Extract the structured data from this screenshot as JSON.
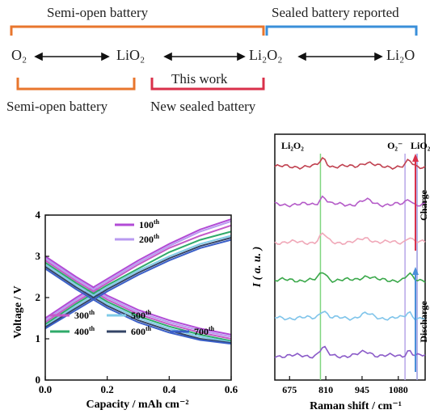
{
  "scheme": {
    "labels": {
      "semi_open_top": "Semi-open battery",
      "sealed_reported": "Sealed battery reported",
      "this_work": "This work",
      "semi_open_bottom": "Semi-open battery",
      "new_sealed": "New sealed battery"
    },
    "species": [
      "O₂",
      "LiO₂",
      "Li₂O₂",
      "Li₂O"
    ],
    "colors": {
      "orange": "#e8762d",
      "blue": "#3a8fd9",
      "red": "#d9304a"
    }
  },
  "chart_data": [
    {
      "type": "line",
      "title": "",
      "xlabel": "Capacity / mAh cm⁻²",
      "ylabel": "Voltage / V",
      "xlim": [
        0.0,
        0.6
      ],
      "ylim": [
        0,
        4
      ],
      "xticks": [
        0.0,
        0.2,
        0.4,
        0.6
      ],
      "xtick_labels": [
        "0.0",
        "0.2",
        "0.4",
        "0.6"
      ],
      "yticks": [
        0,
        1,
        2,
        3,
        4
      ],
      "ytick_labels": [
        "0",
        "1",
        "2",
        "3",
        "4"
      ],
      "legend": [
        {
          "name": "100",
          "sup": "th",
          "color": "#b24bd6"
        },
        {
          "name": "200",
          "sup": "th",
          "color": "#b89af0"
        },
        {
          "name": "300",
          "sup": "th",
          "color": "#c45ac8"
        },
        {
          "name": "400",
          "sup": "th",
          "color": "#2faa6a"
        },
        {
          "name": "500",
          "sup": "th",
          "color": "#7fcbe8"
        },
        {
          "name": "600",
          "sup": "th",
          "color": "#334466"
        },
        {
          "name": "700",
          "sup": "th",
          "color": "#3a5fc8"
        }
      ],
      "series": [
        {
          "name": "100",
          "color": "#b24bd6",
          "discharge": [
            [
              0.0,
              3.0
            ],
            [
              0.1,
              2.5
            ],
            [
              0.2,
              2.05
            ],
            [
              0.3,
              1.7
            ],
            [
              0.4,
              1.45
            ],
            [
              0.5,
              1.25
            ],
            [
              0.6,
              1.1
            ]
          ],
          "charge": [
            [
              0.0,
              1.5
            ],
            [
              0.1,
              2.0
            ],
            [
              0.2,
              2.45
            ],
            [
              0.3,
              2.9
            ],
            [
              0.4,
              3.3
            ],
            [
              0.5,
              3.65
            ],
            [
              0.6,
              3.9
            ]
          ]
        },
        {
          "name": "200",
          "color": "#b89af0",
          "discharge": [
            [
              0.0,
              2.95
            ],
            [
              0.1,
              2.45
            ],
            [
              0.2,
              2.0
            ],
            [
              0.3,
              1.65
            ],
            [
              0.4,
              1.4
            ],
            [
              0.5,
              1.2
            ],
            [
              0.6,
              1.05
            ]
          ],
          "charge": [
            [
              0.0,
              1.45
            ],
            [
              0.1,
              1.95
            ],
            [
              0.2,
              2.4
            ],
            [
              0.3,
              2.85
            ],
            [
              0.4,
              3.25
            ],
            [
              0.5,
              3.6
            ],
            [
              0.6,
              3.85
            ]
          ]
        },
        {
          "name": "300",
          "color": "#c45ac8",
          "discharge": [
            [
              0.0,
              2.9
            ],
            [
              0.1,
              2.4
            ],
            [
              0.2,
              1.95
            ],
            [
              0.3,
              1.6
            ],
            [
              0.4,
              1.35
            ],
            [
              0.5,
              1.15
            ],
            [
              0.6,
              1.0
            ]
          ],
          "charge": [
            [
              0.0,
              1.4
            ],
            [
              0.1,
              1.9
            ],
            [
              0.2,
              2.35
            ],
            [
              0.3,
              2.8
            ],
            [
              0.4,
              3.2
            ],
            [
              0.5,
              3.5
            ],
            [
              0.6,
              3.75
            ]
          ]
        },
        {
          "name": "400",
          "color": "#2faa6a",
          "discharge": [
            [
              0.0,
              2.85
            ],
            [
              0.1,
              2.35
            ],
            [
              0.2,
              1.9
            ],
            [
              0.3,
              1.55
            ],
            [
              0.4,
              1.3
            ],
            [
              0.5,
              1.1
            ],
            [
              0.6,
              0.95
            ]
          ],
          "charge": [
            [
              0.0,
              1.35
            ],
            [
              0.1,
              1.85
            ],
            [
              0.2,
              2.3
            ],
            [
              0.3,
              2.7
            ],
            [
              0.4,
              3.1
            ],
            [
              0.5,
              3.4
            ],
            [
              0.6,
              3.6
            ]
          ]
        },
        {
          "name": "500",
          "color": "#7fcbe8",
          "discharge": [
            [
              0.0,
              2.8
            ],
            [
              0.1,
              2.3
            ],
            [
              0.2,
              1.85
            ],
            [
              0.3,
              1.5
            ],
            [
              0.4,
              1.25
            ],
            [
              0.5,
              1.05
            ],
            [
              0.6,
              0.92
            ]
          ],
          "charge": [
            [
              0.0,
              1.3
            ],
            [
              0.1,
              1.8
            ],
            [
              0.2,
              2.25
            ],
            [
              0.3,
              2.65
            ],
            [
              0.4,
              3.0
            ],
            [
              0.5,
              3.3
            ],
            [
              0.6,
              3.5
            ]
          ]
        },
        {
          "name": "600",
          "color": "#334466",
          "discharge": [
            [
              0.0,
              2.75
            ],
            [
              0.1,
              2.25
            ],
            [
              0.2,
              1.8
            ],
            [
              0.3,
              1.45
            ],
            [
              0.4,
              1.2
            ],
            [
              0.5,
              1.0
            ],
            [
              0.6,
              0.9
            ]
          ],
          "charge": [
            [
              0.0,
              1.28
            ],
            [
              0.1,
              1.75
            ],
            [
              0.2,
              2.2
            ],
            [
              0.3,
              2.6
            ],
            [
              0.4,
              2.95
            ],
            [
              0.5,
              3.25
            ],
            [
              0.6,
              3.45
            ]
          ]
        },
        {
          "name": "700",
          "color": "#3a5fc8",
          "discharge": [
            [
              0.0,
              2.7
            ],
            [
              0.1,
              2.2
            ],
            [
              0.2,
              1.75
            ],
            [
              0.3,
              1.4
            ],
            [
              0.4,
              1.15
            ],
            [
              0.5,
              0.97
            ],
            [
              0.6,
              0.88
            ]
          ],
          "charge": [
            [
              0.0,
              1.25
            ],
            [
              0.1,
              1.7
            ],
            [
              0.2,
              2.15
            ],
            [
              0.3,
              2.55
            ],
            [
              0.4,
              2.9
            ],
            [
              0.5,
              3.2
            ],
            [
              0.6,
              3.4
            ]
          ]
        }
      ]
    },
    {
      "type": "line",
      "title": "",
      "xlabel": "Raman shift / cm⁻¹",
      "ylabel": "I ( a. u. )",
      "xlim": [
        620,
        1180
      ],
      "xticks": [
        675,
        810,
        945,
        1080
      ],
      "xtick_labels": [
        "675",
        "810",
        "945",
        "1080"
      ],
      "peaks": [
        {
          "label": "Li₂O₂",
          "x": 790,
          "color": "#7fd67f"
        },
        {
          "label": "O₂⁻",
          "x": 1105,
          "color": "#b7a6e8"
        },
        {
          "label": "LiO₂",
          "x": 1150,
          "color": "#9a9ae0"
        }
      ],
      "arrows": [
        {
          "label": "Charge",
          "direction": "up",
          "color": "#d9304a"
        },
        {
          "label": "Discharge",
          "direction": "up",
          "color": "#4a8fd9"
        }
      ],
      "spectra": [
        {
          "color": "#c0404f",
          "offset": 5
        },
        {
          "color": "#b45ac8",
          "offset": 4
        },
        {
          "color": "#f0a8b8",
          "offset": 3
        },
        {
          "color": "#3aa84a",
          "offset": 2
        },
        {
          "color": "#7fc4ea",
          "offset": 1
        },
        {
          "color": "#8a5ac8",
          "offset": 0
        }
      ]
    }
  ]
}
